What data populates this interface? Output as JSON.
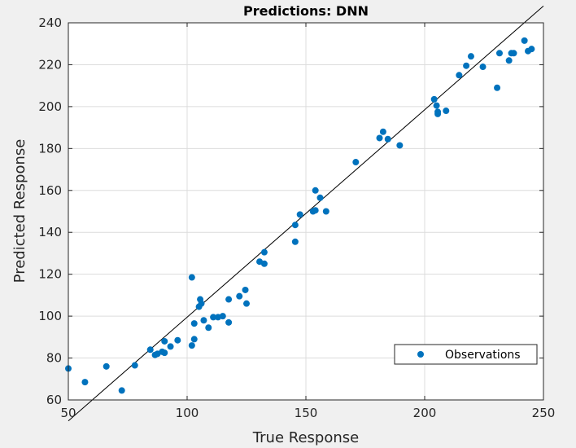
{
  "chart_data": {
    "type": "scatter",
    "title": "Predictions: DNN",
    "xlabel": "True Response",
    "ylabel": "Predicted Response",
    "xlim": [
      50,
      250
    ],
    "ylim": [
      60,
      240
    ],
    "xticks": [
      50,
      100,
      150,
      200,
      250
    ],
    "yticks": [
      60,
      80,
      100,
      120,
      140,
      160,
      180,
      200,
      220,
      240
    ],
    "grid": true,
    "legend_position": "bottom-right",
    "reference_line": [
      [
        50,
        50
      ],
      [
        250,
        248
      ]
    ],
    "series": [
      {
        "name": "Observations",
        "color": "#0072bd",
        "marker": "circle",
        "points": [
          [
            50,
            75
          ],
          [
            57,
            68.5
          ],
          [
            66,
            76
          ],
          [
            72.5,
            64.5
          ],
          [
            78,
            76.5
          ],
          [
            84.5,
            84
          ],
          [
            86.5,
            81.5
          ],
          [
            87.5,
            82
          ],
          [
            89.5,
            83
          ],
          [
            90.5,
            88
          ],
          [
            90.5,
            82.5
          ],
          [
            93,
            85.5
          ],
          [
            96,
            88.5
          ],
          [
            102,
            118.5
          ],
          [
            102,
            86
          ],
          [
            103,
            89
          ],
          [
            103,
            96.5
          ],
          [
            105,
            104.5
          ],
          [
            105.5,
            108
          ],
          [
            106,
            106
          ],
          [
            107,
            98
          ],
          [
            109,
            94.5
          ],
          [
            111,
            99.5
          ],
          [
            113,
            99.5
          ],
          [
            115,
            100
          ],
          [
            117.5,
            108
          ],
          [
            117.5,
            97
          ],
          [
            122,
            109.5
          ],
          [
            124.5,
            112.5
          ],
          [
            125,
            106
          ],
          [
            130.5,
            126
          ],
          [
            132.5,
            125
          ],
          [
            132.5,
            130.5
          ],
          [
            145.5,
            135.5
          ],
          [
            145.5,
            143.5
          ],
          [
            147.5,
            148.5
          ],
          [
            153,
            150
          ],
          [
            154,
            160
          ],
          [
            154,
            150.5
          ],
          [
            156,
            156.5
          ],
          [
            158.5,
            150
          ],
          [
            171,
            173.5
          ],
          [
            181,
            185
          ],
          [
            182.5,
            188
          ],
          [
            184.5,
            184.5
          ],
          [
            189.5,
            181.5
          ],
          [
            204,
            203.5
          ],
          [
            205,
            200.5
          ],
          [
            205.5,
            196.5
          ],
          [
            205.5,
            197.5
          ],
          [
            209,
            198
          ],
          [
            214.5,
            215
          ],
          [
            217.5,
            219.5
          ],
          [
            219.5,
            224
          ],
          [
            224.5,
            219
          ],
          [
            230.5,
            209
          ],
          [
            231.5,
            225.5
          ],
          [
            235.5,
            222
          ],
          [
            236.5,
            225.5
          ],
          [
            237.5,
            225.5
          ],
          [
            242,
            231.5
          ],
          [
            243.5,
            226.5
          ],
          [
            245,
            227.5
          ]
        ]
      }
    ]
  }
}
